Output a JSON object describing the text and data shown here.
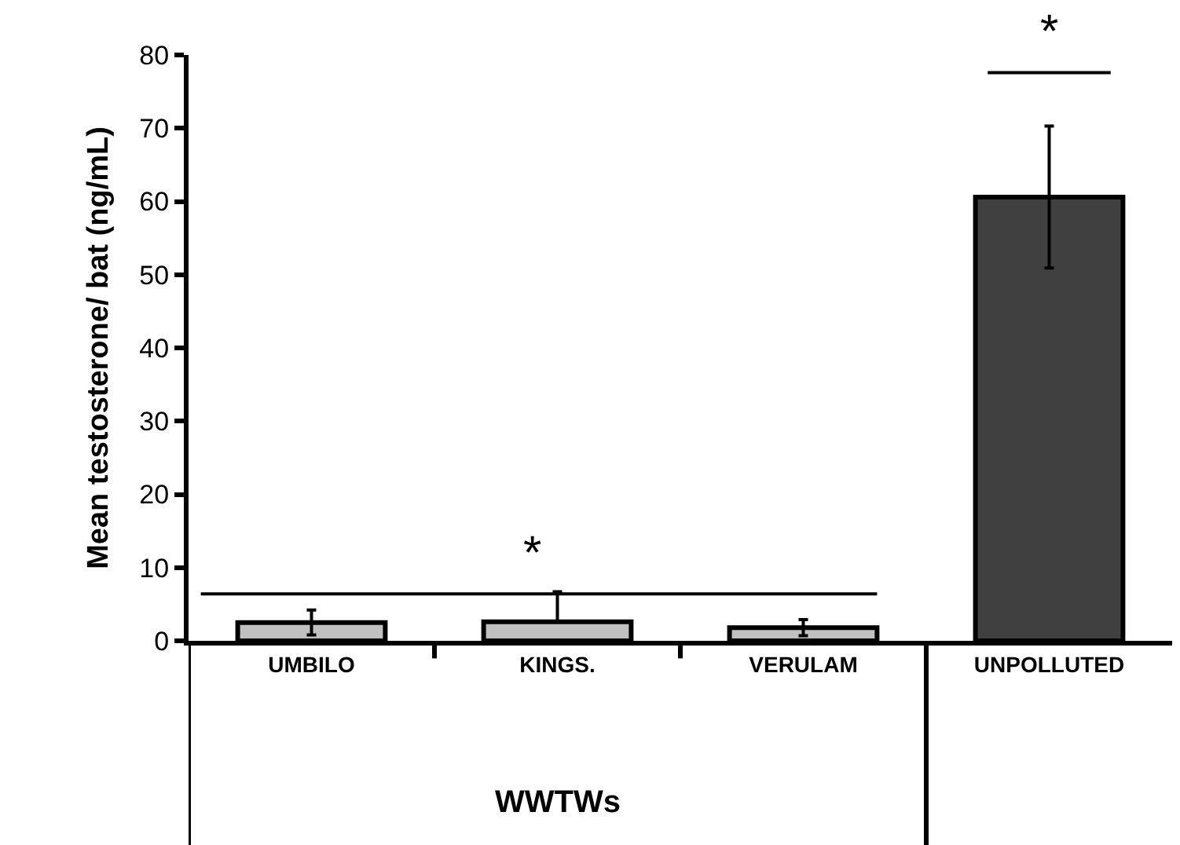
{
  "chart_data": {
    "type": "bar",
    "categories": [
      "UMBILO",
      "KINGS.",
      "VERULAM",
      "UNPOLLUTED"
    ],
    "values": [
      2.5,
      2.6,
      1.8,
      60.6
    ],
    "colors": [
      "#c0c0c0",
      "#c0c0c0",
      "#c0c0c0",
      "#404040"
    ],
    "errors": [
      1.7,
      [
        2.6,
        6.7
      ],
      1.1,
      9.7
    ],
    "xlabel": "WWTWs",
    "ylabel": "Mean testosterone/ bat (ng/mL)",
    "ylim": [
      0,
      80
    ],
    "yticks": [
      0,
      10,
      20,
      30,
      40,
      50,
      60,
      70,
      80
    ],
    "annotations": [
      "*",
      "*"
    ],
    "legend": false
  }
}
